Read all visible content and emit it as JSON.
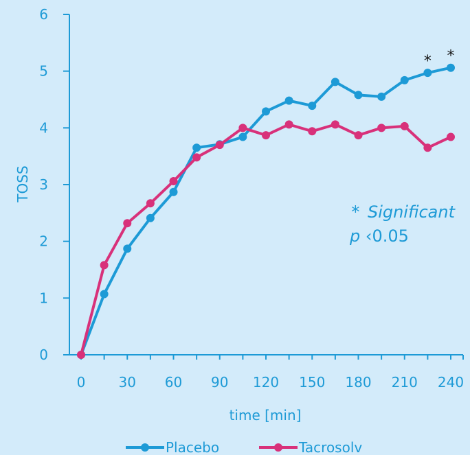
{
  "chart_data": {
    "type": "line",
    "title": "",
    "xlabel": "time [min]",
    "ylabel": "TOSS",
    "xlim": [
      0,
      240
    ],
    "ylim": [
      0,
      6
    ],
    "xticks": [
      0,
      30,
      60,
      90,
      120,
      150,
      180,
      210,
      240
    ],
    "yticks": [
      0,
      1,
      2,
      3,
      4,
      5,
      6
    ],
    "grid": false,
    "legend": "bottom",
    "x": [
      0,
      15,
      30,
      45,
      60,
      75,
      90,
      105,
      120,
      135,
      150,
      165,
      180,
      195,
      210,
      225,
      240
    ],
    "series": [
      {
        "name": "Placebo",
        "color": "#1d9ad6",
        "values": [
          0,
          1.07,
          1.87,
          2.41,
          2.87,
          3.65,
          3.71,
          3.84,
          4.29,
          4.48,
          4.39,
          4.81,
          4.58,
          4.55,
          4.84,
          4.97,
          5.06
        ]
      },
      {
        "name": "Tacrosolv",
        "color": "#d8317a",
        "values": [
          0,
          1.58,
          2.32,
          2.67,
          3.06,
          3.48,
          3.7,
          4.0,
          3.87,
          4.06,
          3.94,
          4.06,
          3.87,
          4.0,
          4.03,
          3.65,
          3.84
        ]
      }
    ],
    "significance_markers": [
      {
        "x": 225,
        "label": "*"
      },
      {
        "x": 240,
        "label": "*"
      }
    ],
    "annotation": {
      "star": "*",
      "line1": "Significant",
      "p_symbol": "p",
      "p_rest": "‹0.05"
    }
  }
}
